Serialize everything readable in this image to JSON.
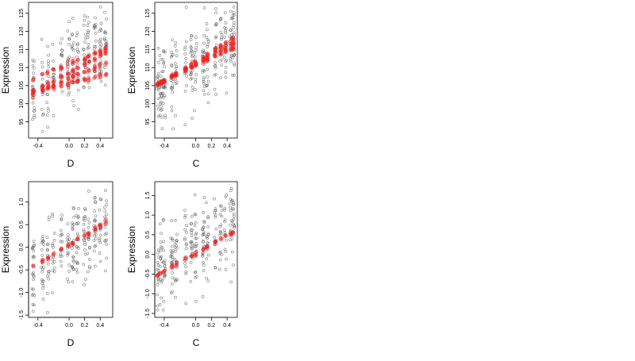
{
  "chart_data": [
    {
      "type": "scatter",
      "xlabel": "D",
      "ylabel": "Expression",
      "xlim": [
        -0.52,
        0.56
      ],
      "ylim": [
        90.5,
        128
      ],
      "xticks": [
        -0.4,
        0.0,
        0.2,
        0.4
      ],
      "xtick_labels": [
        "-0.4",
        "0.0",
        "0.2",
        "0.4"
      ],
      "yticks": [
        95,
        100,
        105,
        110,
        115,
        120,
        125
      ],
      "ytick_labels": [
        "95",
        "100",
        "105",
        "110",
        "115",
        "120",
        "125"
      ],
      "grid": false,
      "x_groups": [
        -0.46,
        -0.34,
        -0.27,
        -0.2,
        -0.1,
        -0.01,
        0.05,
        0.11,
        0.2,
        0.25,
        0.33,
        0.4,
        0.47
      ],
      "y_range_observed": [
        91.5,
        127
      ],
      "fitted_lines": [
        {
          "intercept": 111.0,
          "slope": 9.0
        },
        {
          "intercept": 108.6,
          "slope": 11.5
        },
        {
          "intercept": 106.8,
          "slope": 9.4
        },
        {
          "intercept": 105.6,
          "slope": 5.2
        }
      ],
      "series": [
        {
          "role": "observed",
          "color": "#555555",
          "marker": "open-circle"
        },
        {
          "role": "fitted",
          "color": "#ee2222",
          "marker": "filled-circle"
        }
      ]
    },
    {
      "type": "scatter",
      "xlabel": "C",
      "ylabel": "Expression",
      "xlim": [
        -0.52,
        0.53
      ],
      "ylim": [
        90.5,
        128
      ],
      "xticks": [
        -0.4,
        0.0,
        0.2,
        0.4
      ],
      "xtick_labels": [
        "-0.4",
        "0.0",
        "0.2",
        "0.4"
      ],
      "yticks": [
        95,
        100,
        105,
        110,
        115,
        120,
        125
      ],
      "ytick_labels": [
        "95",
        "100",
        "105",
        "110",
        "115",
        "120",
        "125"
      ],
      "grid": false,
      "x_groups": [
        -0.48,
        -0.44,
        -0.4,
        -0.3,
        -0.25,
        -0.13,
        -0.05,
        0.0,
        0.1,
        0.15,
        0.25,
        0.32,
        0.38,
        0.45,
        0.48
      ],
      "y_range_observed": [
        91.5,
        127
      ],
      "fitted_lines": [
        {
          "intercept": 111.6,
          "slope": 13.5
        },
        {
          "intercept": 111.0,
          "slope": 12.0
        },
        {
          "intercept": 110.5,
          "slope": 10.5
        }
      ],
      "series": [
        {
          "role": "observed",
          "color": "#555555",
          "marker": "open-circle"
        },
        {
          "role": "fitted",
          "color": "#ee2222",
          "marker": "filled-circle"
        }
      ]
    },
    {
      "type": "scatter",
      "xlabel": "D",
      "ylabel": "Expression",
      "xlim": [
        -0.52,
        0.56
      ],
      "ylim": [
        -1.55,
        1.45
      ],
      "xticks": [
        -0.4,
        0.0,
        0.2,
        0.4
      ],
      "xtick_labels": [
        "-0.4",
        "0.0",
        "0.2",
        "0.4"
      ],
      "yticks": [
        -1.5,
        -1.0,
        -0.5,
        0.0,
        0.5,
        1.0
      ],
      "ytick_labels": [
        "-1.5",
        "-1.0",
        "-0.5",
        "0.0",
        "0.5",
        "1.0"
      ],
      "grid": false,
      "x_groups": [
        -0.46,
        -0.34,
        -0.27,
        -0.2,
        -0.1,
        -0.01,
        0.05,
        0.11,
        0.2,
        0.25,
        0.33,
        0.4,
        0.47
      ],
      "y_range_observed": [
        -1.45,
        1.3
      ],
      "fitted_lines": [
        {
          "intercept": 0.05,
          "slope": 1.05
        }
      ],
      "series": [
        {
          "role": "observed",
          "color": "#555555",
          "marker": "open-circle"
        },
        {
          "role": "fitted",
          "color": "#ee2222",
          "marker": "filled-circle"
        }
      ]
    },
    {
      "type": "scatter",
      "xlabel": "C",
      "ylabel": "Expression",
      "xlim": [
        -0.52,
        0.53
      ],
      "ylim": [
        -1.6,
        1.85
      ],
      "xticks": [
        -0.4,
        0.0,
        0.2,
        0.4
      ],
      "xtick_labels": [
        "-0.4",
        "0.0",
        "0.2",
        "0.4"
      ],
      "yticks": [
        -1.5,
        -1.0,
        -0.5,
        0.0,
        0.5,
        1.0,
        1.5
      ],
      "ytick_labels": [
        "-1.5",
        "-1.0",
        "-0.5",
        "0.0",
        "0.5",
        "1.0",
        "1.5"
      ],
      "grid": false,
      "x_groups": [
        -0.48,
        -0.44,
        -0.4,
        -0.3,
        -0.25,
        -0.13,
        -0.05,
        0.0,
        0.1,
        0.15,
        0.25,
        0.32,
        0.38,
        0.45,
        0.48
      ],
      "y_range_observed": [
        -1.5,
        1.7
      ],
      "fitted_lines": [
        {
          "intercept": 0.03,
          "slope": 1.15
        }
      ],
      "series": [
        {
          "role": "observed",
          "color": "#555555",
          "marker": "open-circle"
        },
        {
          "role": "fitted",
          "color": "#ee2222",
          "marker": "filled-circle"
        }
      ]
    }
  ]
}
